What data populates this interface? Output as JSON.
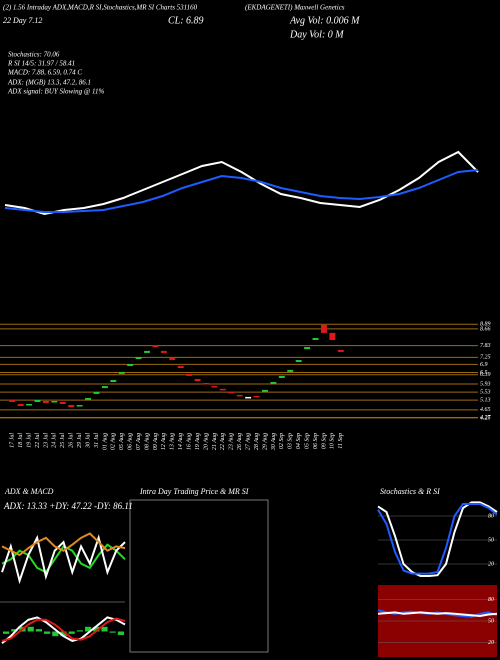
{
  "header": {
    "title": "(2) 1.56 Intraday ADX,MACD,R SI,Stochastics,MR SI Charts 531160",
    "company": "(EKDAGENETI) Maxwell Genetics",
    "day": "22 Day 7.12",
    "close": "CL: 6.89",
    "avg_vol": "Avg Vol: 0.006 M",
    "day_vol": "Day Vol: 0 M",
    "stochastics": "Stochastics: 70.06",
    "rsi": "R SI 14/5: 31.97 / 58.41",
    "macd": "MACD: 7.88, 6.59, 0.74 C",
    "adx": "ADX: (MGB) 13.3, 47.2, 86.1",
    "adx_signal": "ADX signal: BUY Slowing @ 11%"
  },
  "chart_data": [
    {
      "type": "line",
      "ylim": [
        4.5,
        8.5
      ],
      "series": [
        {
          "color": "#ffffff",
          "values": [
            5.25,
            5.1,
            4.8,
            5.0,
            5.1,
            5.3,
            5.6,
            6.0,
            6.4,
            6.8,
            7.2,
            7.4,
            6.9,
            6.3,
            5.8,
            5.6,
            5.35,
            5.25,
            5.15,
            5.5,
            6.0,
            6.6,
            7.4,
            7.9,
            6.9
          ]
        },
        {
          "color": "#1f5cff",
          "values": [
            5.1,
            5.0,
            4.9,
            4.9,
            4.95,
            5.0,
            5.2,
            5.4,
            5.7,
            6.1,
            6.4,
            6.7,
            6.6,
            6.4,
            6.1,
            5.9,
            5.7,
            5.6,
            5.55,
            5.65,
            5.8,
            6.1,
            6.5,
            6.9,
            7.0
          ]
        }
      ]
    },
    {
      "type": "candlestick",
      "ylim": [
        3.9,
        9.2
      ],
      "yticks": [
        8.89,
        8.66,
        7.83,
        7.25,
        6.9,
        6.5,
        6.39,
        5.93,
        5.53,
        5.13,
        4.65,
        4.27,
        4.25
      ],
      "grid_color": "#9a6a10",
      "up_color": "#22c832",
      "down_color": "#e01818",
      "categories": [
        "17 Jul",
        "18 Jul",
        "19 Jul",
        "22 Jul",
        "23 Jul",
        "24 Jul",
        "25 Jul",
        "26 Jul",
        "29 Jul",
        "30 Jul",
        "31 Jul",
        "01 Aug",
        "02 Aug",
        "05 Aug",
        "06 Aug",
        "07 Aug",
        "08 Aug",
        "09 Aug",
        "12 Aug",
        "13 Aug",
        "14 Aug",
        "16 Aug",
        "19 Aug",
        "20 Aug",
        "21 Aug",
        "22 Aug",
        "23 Aug",
        "26 Aug",
        "27 Aug",
        "28 Aug",
        "29 Aug",
        "30 Aug",
        "02 Sep",
        "03 Sep",
        "04 Sep",
        "05 Sep",
        "06 Sep",
        "09 Sep",
        "10 Sep",
        "11 Sep"
      ],
      "open": [
        5.14,
        4.94,
        4.89,
        5.04,
        5.09,
        5.04,
        5.04,
        4.89,
        4.84,
        5.14,
        5.44,
        5.73,
        6.03,
        6.43,
        6.82,
        7.17,
        7.47,
        7.86,
        7.57,
        7.22,
        6.82,
        6.43,
        6.18,
        5.98,
        5.83,
        5.69,
        5.54,
        5.39,
        5.29,
        5.34,
        5.54,
        5.93,
        6.23,
        6.53,
        7.02,
        7.66,
        8.11,
        8.86,
        8.46,
        7.62
      ],
      "close": [
        5.04,
        4.84,
        4.94,
        5.14,
        4.99,
        5.09,
        4.94,
        4.79,
        4.89,
        5.24,
        5.54,
        5.83,
        6.13,
        6.53,
        6.92,
        7.27,
        7.57,
        7.76,
        7.47,
        7.12,
        6.72,
        6.33,
        6.08,
        5.93,
        5.78,
        5.64,
        5.49,
        5.34,
        5.29,
        5.29,
        5.64,
        6.03,
        6.33,
        6.63,
        7.12,
        7.76,
        8.21,
        8.46,
        8.11,
        7.52
      ]
    },
    {
      "type": "line",
      "title": "ADX  & MACD",
      "subtitle": "ADX: 13.33 +DY: 47.22 -DY: 86.11",
      "ylim": [
        0,
        100
      ],
      "series": [
        {
          "color": "#22dd22",
          "values": [
            40,
            45,
            55,
            50,
            35,
            30,
            45,
            60,
            55,
            40,
            35,
            50,
            62,
            55,
            45
          ]
        },
        {
          "color": "#ffffff",
          "values": [
            30,
            60,
            20,
            50,
            70,
            25,
            55,
            65,
            30,
            60,
            40,
            70,
            30,
            55,
            65
          ]
        },
        {
          "color": "#e08a1e",
          "values": [
            60,
            55,
            50,
            58,
            65,
            70,
            60,
            55,
            62,
            70,
            75,
            65,
            55,
            60,
            58
          ]
        }
      ]
    },
    {
      "type": "macd",
      "ylim": [
        -1,
        1
      ],
      "bar_color": "#22c832",
      "bars": [
        -0.1,
        0.1,
        0.2,
        0.2,
        0.1,
        -0.1,
        -0.2,
        -0.2,
        -0.1,
        0.05,
        0.2,
        0.2,
        0.2,
        -0.05,
        -0.15
      ],
      "series": [
        {
          "color": "#ffffff",
          "values": [
            -0.5,
            -0.2,
            0.2,
            0.5,
            0.6,
            0.4,
            0.1,
            -0.2,
            -0.4,
            -0.3,
            0,
            0.3,
            0.6,
            0.5,
            0.3
          ]
        },
        {
          "color": "#e01818",
          "values": [
            -0.4,
            -0.3,
            0,
            0.3,
            0.5,
            0.5,
            0.3,
            0,
            -0.3,
            -0.35,
            -0.2,
            0.1,
            0.4,
            0.55,
            0.45
          ]
        }
      ]
    },
    {
      "type": "line",
      "title": "Intra Day Trading Price  & MR          SI",
      "series": []
    },
    {
      "type": "line",
      "title": "Stochastics  & R          SI",
      "ylim": [
        0,
        100
      ],
      "yticks": [
        20,
        50,
        80
      ],
      "series": [
        {
          "color": "#ffffff",
          "values": [
            92,
            85,
            55,
            20,
            10,
            5,
            5,
            6,
            20,
            60,
            90,
            97,
            97,
            92,
            85
          ]
        },
        {
          "color": "#1f5cff",
          "values": [
            88,
            70,
            35,
            12,
            8,
            8,
            8,
            10,
            40,
            80,
            95,
            95,
            95,
            90,
            82
          ]
        }
      ]
    },
    {
      "type": "line",
      "ylim": [
        0,
        100
      ],
      "yticks": [
        20,
        50,
        80
      ],
      "background": "#8b0000",
      "series": [
        {
          "color": "#1f5cff",
          "values": [
            65,
            62,
            60,
            62,
            63,
            61,
            60,
            62,
            60,
            58,
            57,
            56,
            60,
            62,
            58
          ]
        },
        {
          "color": "#ffffff",
          "values": [
            60,
            61,
            62,
            60,
            61,
            62,
            61,
            60,
            61,
            60,
            59,
            58,
            57,
            59,
            60
          ]
        }
      ]
    }
  ]
}
